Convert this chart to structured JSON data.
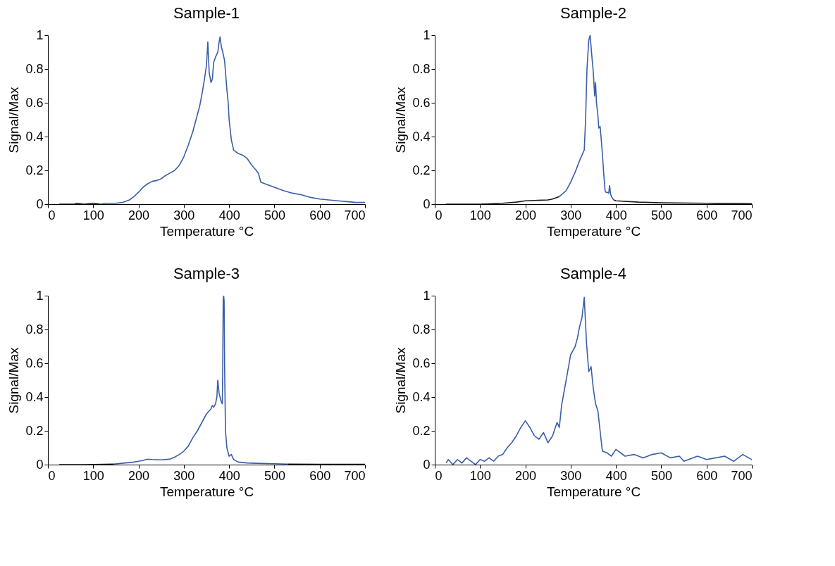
{
  "chart_data": [
    {
      "type": "line",
      "title": "Sample-1",
      "xlabel": "Temperature °C",
      "ylabel": "Signal/Max",
      "xlim": [
        0,
        700
      ],
      "xticks": [
        0,
        100,
        200,
        300,
        400,
        500,
        600,
        700
      ],
      "ylim": [
        0,
        1
      ],
      "yticks": [
        0,
        0.2,
        0.4,
        0.6,
        0.8,
        1
      ],
      "grid": false,
      "series": [
        {
          "color": "#1a1a1a",
          "x": [
            25,
            60,
            62,
            80,
            100,
            115
          ],
          "values": [
            0,
            0,
            0.005,
            0,
            0.005,
            0
          ]
        },
        {
          "color": "#3a5ea8",
          "x": [
            115,
            130,
            150,
            165,
            180,
            190,
            200,
            210,
            220,
            230,
            240,
            250,
            260,
            270,
            280,
            290,
            300,
            310,
            320,
            330,
            335,
            340,
            345,
            350,
            353,
            356,
            360,
            363,
            366,
            370,
            375,
            378,
            380,
            383,
            386,
            390,
            395,
            398,
            400,
            405,
            410,
            415,
            420,
            430,
            440,
            450,
            460,
            465,
            470,
            480,
            500,
            520,
            540,
            560,
            580,
            600,
            620,
            640,
            660,
            680,
            700
          ],
          "values": [
            0,
            0.005,
            0.005,
            0.01,
            0.025,
            0.045,
            0.07,
            0.1,
            0.12,
            0.135,
            0.14,
            0.15,
            0.17,
            0.185,
            0.2,
            0.23,
            0.28,
            0.35,
            0.43,
            0.53,
            0.58,
            0.65,
            0.73,
            0.82,
            0.96,
            0.78,
            0.72,
            0.74,
            0.84,
            0.87,
            0.9,
            0.96,
            0.99,
            0.93,
            0.9,
            0.85,
            0.68,
            0.6,
            0.5,
            0.38,
            0.32,
            0.31,
            0.3,
            0.29,
            0.27,
            0.23,
            0.2,
            0.18,
            0.13,
            0.12,
            0.1,
            0.08,
            0.065,
            0.055,
            0.04,
            0.03,
            0.025,
            0.02,
            0.015,
            0.01,
            0.01
          ]
        }
      ]
    },
    {
      "type": "line",
      "title": "Sample-2",
      "xlabel": "Temperature °C",
      "ylabel": "Signal/Max",
      "xlim": [
        0,
        700
      ],
      "xticks": [
        0,
        100,
        200,
        300,
        400,
        500,
        600,
        700
      ],
      "ylim": [
        0,
        1
      ],
      "yticks": [
        0,
        0.2,
        0.4,
        0.6,
        0.8,
        1
      ],
      "grid": false,
      "series": [
        {
          "color": "#1a1a1a",
          "x": [
            25,
            100,
            150,
            180,
            200,
            220,
            250,
            260,
            275,
            335,
            395,
            400,
            450,
            500,
            600,
            700
          ],
          "values": [
            0,
            0,
            0.005,
            0.012,
            0.02,
            0.022,
            0.025,
            0.03,
            0.045,
            null,
            0.025,
            0.02,
            0.012,
            0.008,
            0.005,
            0.003
          ]
        },
        {
          "color": "#3a5ea8",
          "x": [
            275,
            290,
            300,
            310,
            320,
            330,
            333,
            336,
            340,
            343,
            346,
            350,
            353,
            355,
            357,
            360,
            362,
            365,
            367,
            370,
            373,
            376,
            378,
            381,
            384,
            386,
            388,
            391,
            395
          ],
          "values": [
            0.045,
            0.08,
            0.13,
            0.19,
            0.26,
            0.32,
            0.5,
            0.8,
            0.97,
            1.0,
            0.9,
            0.78,
            0.64,
            0.72,
            0.6,
            0.53,
            0.45,
            0.46,
            0.4,
            0.3,
            0.18,
            0.08,
            0.07,
            0.07,
            0.065,
            0.11,
            0.06,
            0.04,
            0.025
          ]
        }
      ]
    },
    {
      "type": "line",
      "title": "Sample-3",
      "xlabel": "Temperature °C",
      "ylabel": "Signal/Max",
      "xlim": [
        0,
        700
      ],
      "xticks": [
        0,
        100,
        200,
        300,
        400,
        500,
        600,
        700
      ],
      "ylim": [
        0,
        1
      ],
      "yticks": [
        0,
        0.2,
        0.4,
        0.6,
        0.8,
        1
      ],
      "grid": false,
      "series": [
        {
          "color": "#1a1a1a",
          "x": [
            25,
            80,
            145,
            338,
            530,
            600,
            700
          ],
          "values": [
            0,
            0,
            0.003,
            null,
            0.003,
            0.002,
            0.002
          ]
        },
        {
          "color": "#3a5ea8",
          "x": [
            145,
            170,
            190,
            200,
            210,
            220,
            230,
            250,
            270,
            280,
            290,
            300,
            310,
            320,
            330,
            340,
            350,
            360,
            363,
            366,
            370,
            373,
            375,
            378,
            380,
            383,
            385,
            386,
            387,
            388,
            389,
            390,
            392,
            395,
            400,
            405,
            410,
            420,
            440,
            460,
            500,
            530
          ],
          "values": [
            0.003,
            0.01,
            0.015,
            0.02,
            0.025,
            0.032,
            0.03,
            0.028,
            0.033,
            0.045,
            0.06,
            0.08,
            0.11,
            0.16,
            0.2,
            0.25,
            0.3,
            0.33,
            0.35,
            0.34,
            0.36,
            0.4,
            0.5,
            0.42,
            0.4,
            0.37,
            0.36,
            0.6,
            0.98,
            1.0,
            0.97,
            0.6,
            0.2,
            0.1,
            0.05,
            0.06,
            0.03,
            0.015,
            0.01,
            0.008,
            0.005,
            0.003
          ]
        }
      ]
    },
    {
      "type": "line",
      "title": "Sample-4",
      "xlabel": "Temperature °C",
      "ylabel": "Signal/Max",
      "xlim": [
        0,
        700
      ],
      "xticks": [
        0,
        100,
        200,
        300,
        400,
        500,
        600,
        700
      ],
      "ylim": [
        0,
        1
      ],
      "yticks": [
        0,
        0.2,
        0.4,
        0.6,
        0.8,
        1
      ],
      "grid": false,
      "series": [
        {
          "color": "#3a5ea8",
          "x": [
            25,
            30,
            40,
            50,
            60,
            70,
            80,
            90,
            100,
            110,
            120,
            130,
            140,
            150,
            160,
            170,
            180,
            190,
            200,
            205,
            210,
            220,
            230,
            240,
            250,
            260,
            270,
            275,
            280,
            290,
            300,
            310,
            315,
            320,
            325,
            330,
            335,
            340,
            345,
            350,
            355,
            360,
            365,
            370,
            380,
            390,
            400,
            420,
            440,
            460,
            480,
            500,
            520,
            540,
            550,
            560,
            580,
            600,
            620,
            640,
            660,
            680,
            700
          ],
          "values": [
            0.01,
            0.03,
            0.0,
            0.03,
            0.01,
            0.04,
            0.02,
            0.0,
            0.03,
            0.02,
            0.04,
            0.02,
            0.05,
            0.06,
            0.1,
            0.13,
            0.17,
            0.22,
            0.26,
            0.24,
            0.22,
            0.17,
            0.15,
            0.19,
            0.13,
            0.17,
            0.25,
            0.22,
            0.35,
            0.5,
            0.65,
            0.7,
            0.75,
            0.82,
            0.87,
            0.99,
            0.72,
            0.55,
            0.58,
            0.45,
            0.36,
            0.32,
            0.2,
            0.08,
            0.07,
            0.05,
            0.09,
            0.05,
            0.06,
            0.04,
            0.06,
            0.07,
            0.04,
            0.05,
            0.02,
            0.03,
            0.05,
            0.03,
            0.04,
            0.05,
            0.02,
            0.06,
            0.03
          ]
        }
      ]
    }
  ]
}
